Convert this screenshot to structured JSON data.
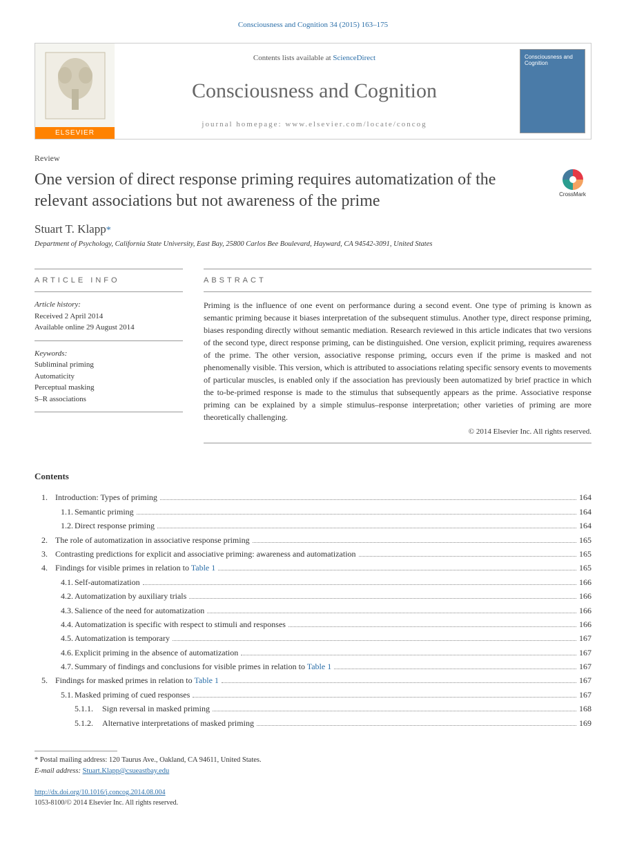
{
  "running_header": "Consciousness and Cognition 34 (2015) 163–175",
  "banner": {
    "logo_label": "ELSEVIER",
    "contents_prefix": "Contents lists available at ",
    "contents_link": "ScienceDirect",
    "journal_name": "Consciousness and Cognition",
    "homepage_prefix": "journal homepage: ",
    "homepage_url": "www.elsevier.com/locate/concog",
    "cover_title": "Consciousness and Cognition"
  },
  "article": {
    "type": "Review",
    "title": "One version of direct response priming requires automatization of the relevant associations but not awareness of the prime",
    "crossmark_label": "CrossMark",
    "author_name": "Stuart T. Klapp",
    "author_marker": "*",
    "affiliation": "Department of Psychology, California State University, East Bay, 25800 Carlos Bee Boulevard, Hayward, CA 94542-3091, United States"
  },
  "info": {
    "heading": "ARTICLE INFO",
    "history_label": "Article history:",
    "received": "Received 2 April 2014",
    "online": "Available online 29 August 2014",
    "keywords_label": "Keywords:",
    "keywords": [
      "Subliminal priming",
      "Automaticity",
      "Perceptual masking",
      "S–R associations"
    ]
  },
  "abstract": {
    "heading": "ABSTRACT",
    "text": "Priming is the influence of one event on performance during a second event. One type of priming is known as semantic priming because it biases interpretation of the subsequent stimulus. Another type, direct response priming, biases responding directly without semantic mediation. Research reviewed in this article indicates that two versions of the second type, direct response priming, can be distinguished. One version, explicit priming, requires awareness of the prime. The other version, associative response priming, occurs even if the prime is masked and not phenomenally visible. This version, which is attributed to associations relating specific sensory events to movements of particular muscles, is enabled only if the association has previously been automatized by brief practice in which the to-be-primed response is made to the stimulus that subsequently appears as the prime. Associative response priming can be explained by a simple stimulus–response interpretation; other varieties of priming are more theoretically challenging.",
    "copyright": "© 2014 Elsevier Inc. All rights reserved."
  },
  "contents": {
    "heading": "Contents",
    "items": [
      {
        "lvl": 1,
        "num": "1.",
        "text": "Introduction: Types of priming",
        "page": "164"
      },
      {
        "lvl": 2,
        "num": "1.1.",
        "text": "Semantic priming",
        "page": "164"
      },
      {
        "lvl": 2,
        "num": "1.2.",
        "text": "Direct response priming",
        "page": "164"
      },
      {
        "lvl": 1,
        "num": "2.",
        "text": "The role of automatization in associative response priming",
        "page": "165"
      },
      {
        "lvl": 1,
        "num": "3.",
        "text": "Contrasting predictions for explicit and associative priming: awareness and automatization",
        "page": "165"
      },
      {
        "lvl": 1,
        "num": "4.",
        "text": "Findings for visible primes in relation to ",
        "link": "Table 1",
        "page": "165"
      },
      {
        "lvl": 2,
        "num": "4.1.",
        "text": "Self-automatization",
        "page": "166"
      },
      {
        "lvl": 2,
        "num": "4.2.",
        "text": "Automatization by auxiliary trials",
        "page": "166"
      },
      {
        "lvl": 2,
        "num": "4.3.",
        "text": "Salience of the need for automatization",
        "page": "166"
      },
      {
        "lvl": 2,
        "num": "4.4.",
        "text": "Automatization is specific with respect to stimuli and responses",
        "page": "166"
      },
      {
        "lvl": 2,
        "num": "4.5.",
        "text": "Automatization is temporary",
        "page": "167"
      },
      {
        "lvl": 2,
        "num": "4.6.",
        "text": "Explicit priming in the absence of automatization",
        "page": "167"
      },
      {
        "lvl": 2,
        "num": "4.7.",
        "text": "Summary of findings and conclusions for visible primes in relation to ",
        "link": "Table 1",
        "page": "167"
      },
      {
        "lvl": 1,
        "num": "5.",
        "text": "Findings for masked primes in relation to ",
        "link": "Table 1",
        "page": "167"
      },
      {
        "lvl": 2,
        "num": "5.1.",
        "text": "Masked priming of cued responses",
        "page": "167"
      },
      {
        "lvl": 3,
        "num": "5.1.1.",
        "text": "Sign reversal in masked priming",
        "page": "168"
      },
      {
        "lvl": 3,
        "num": "5.1.2.",
        "text": "Alternative interpretations of masked priming",
        "page": "169"
      }
    ]
  },
  "footnotes": {
    "corr_marker": "*",
    "corr_text": "Postal mailing address: 120 Taurus Ave., Oakland, CA 94611, United States.",
    "email_label": "E-mail address:",
    "email": "Stuart.Klapp@csueastbay.edu"
  },
  "footer": {
    "doi": "http://dx.doi.org/10.1016/j.concog.2014.08.004",
    "issn_line": "1053-8100/© 2014 Elsevier Inc. All rights reserved."
  }
}
